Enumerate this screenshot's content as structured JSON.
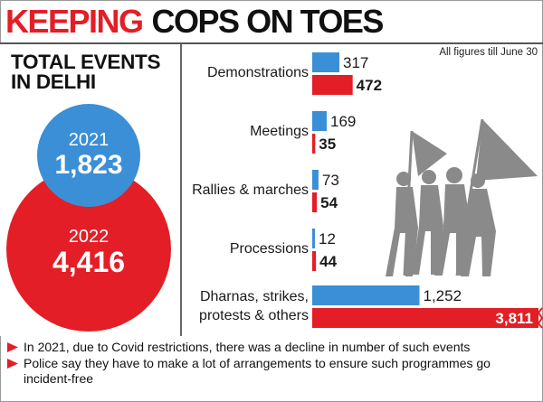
{
  "headline": {
    "red": "KEEPING",
    "black": "COPS ON TOES"
  },
  "note_top": "All figures till June 30",
  "total": {
    "title": "TOTAL EVENTS IN DELHI",
    "items": [
      {
        "year": "2021",
        "value": "1,823"
      },
      {
        "year": "2022",
        "value": "4,416"
      }
    ]
  },
  "colors": {
    "series_2021": "#3b8fd6",
    "series_2022": "#e31e26",
    "silhouette": "#8a8a8a"
  },
  "chart_data": {
    "type": "bar",
    "orientation": "horizontal",
    "categories": [
      "Demonstrations",
      "Meetings",
      "Rallies & marches",
      "Processions",
      "Dharnas, strikes, protests & others"
    ],
    "series": [
      {
        "values": [
          317,
          169,
          73,
          12,
          1252
        ]
      },
      {
        "values": [
          472,
          35,
          54,
          44,
          3811
        ]
      }
    ],
    "value_labels": [
      [
        "317",
        "169",
        "73",
        "12",
        "1,252"
      ],
      [
        "472",
        "35",
        "54",
        "44",
        "3,811"
      ]
    ],
    "axis_break": "3,811 bar truncated",
    "grid": false,
    "legend": "none"
  },
  "footnotes": [
    "In 2021, due to Covid restrictions, there was a decline in number of such events",
    "Police say they have to make a lot of arrangements to ensure such programmes go incident-free"
  ]
}
